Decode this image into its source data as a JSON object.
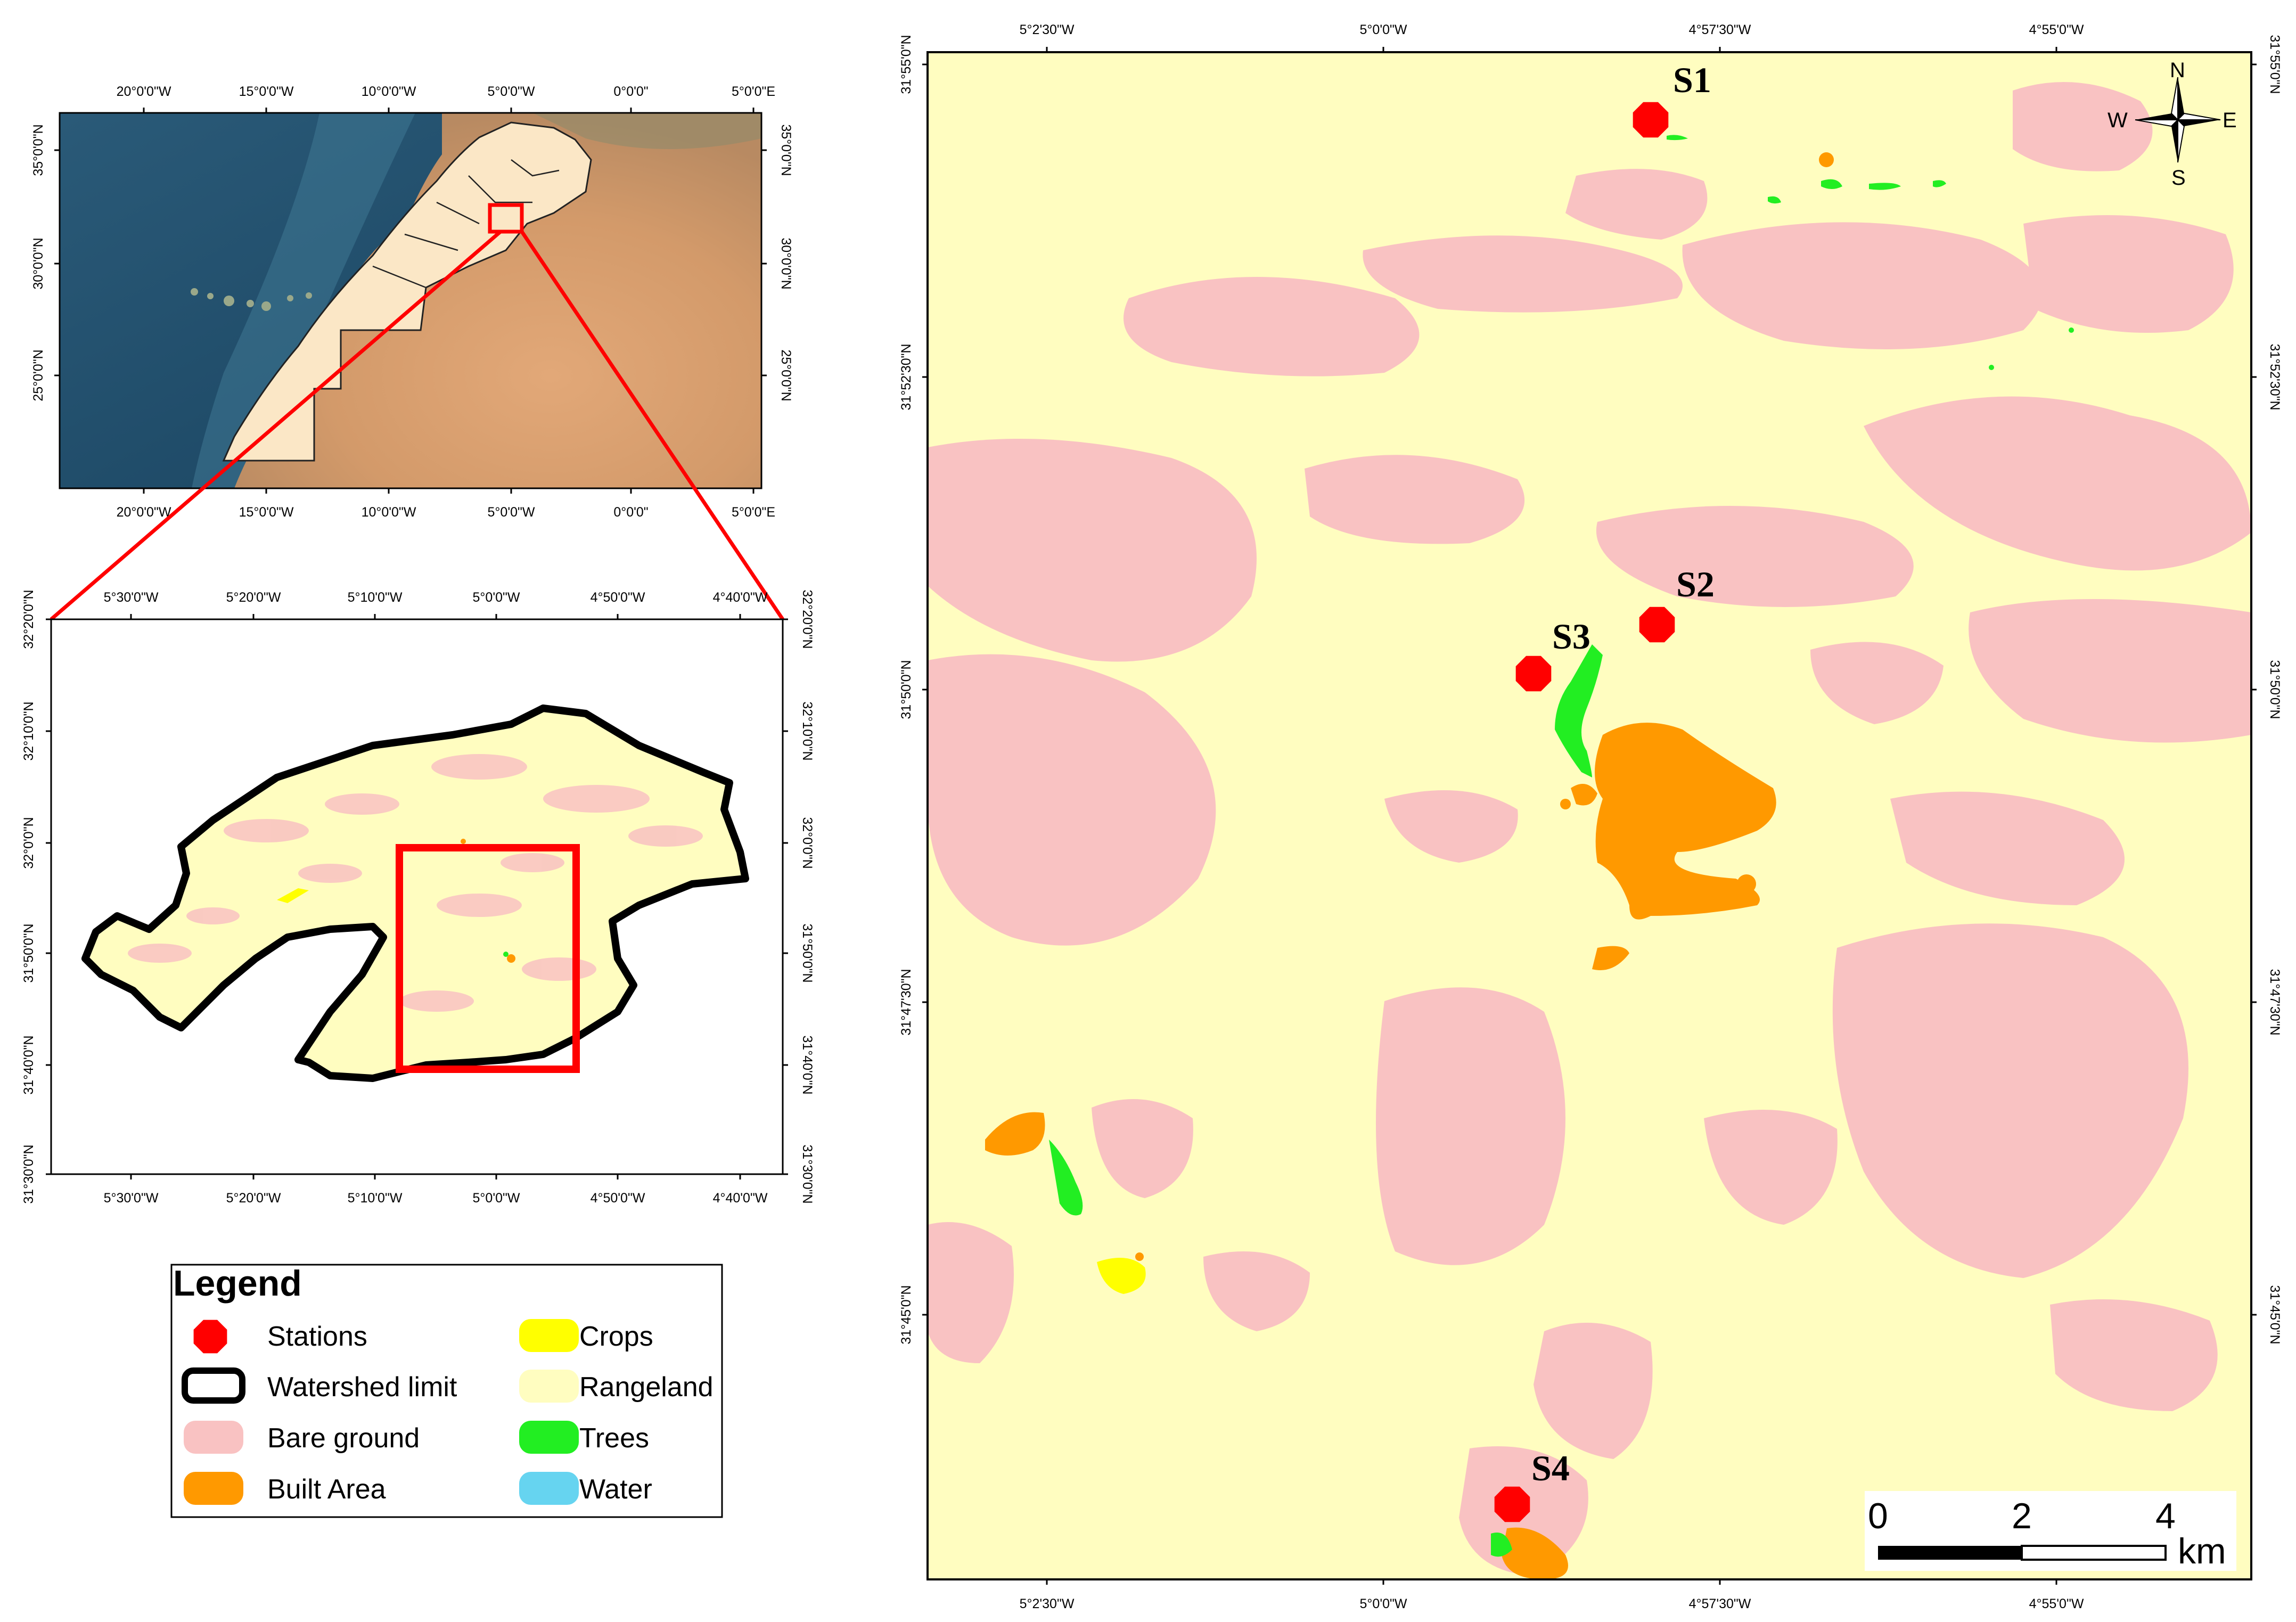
{
  "overview_map": {
    "top_ticks": [
      "20°0'0\"W",
      "15°0'0\"W",
      "10°0'0\"W",
      "5°0'0\"W",
      "0°0'0\"",
      "5°0'0\"E"
    ],
    "bottom_ticks": [
      "20°0'0\"W",
      "15°0'0\"W",
      "10°0'0\"W",
      "5°0'0\"W",
      "0°0'0\"",
      "5°0'0\"E"
    ],
    "left_ticks": [
      "35°0'0\"N",
      "30°0'0\"N",
      "25°0'0\"N"
    ],
    "right_ticks": [
      "35°0'0\"N",
      "30°0'0\"N",
      "25°0'0\"N"
    ]
  },
  "watershed_map": {
    "top_ticks": [
      "5°30'0\"W",
      "5°20'0\"W",
      "5°10'0\"W",
      "5°0'0\"W",
      "4°50'0\"W",
      "4°40'0\"W"
    ],
    "bottom_ticks": [
      "5°30'0\"W",
      "5°20'0\"W",
      "5°10'0\"W",
      "5°0'0\"W",
      "4°50'0\"W",
      "4°40'0\"W"
    ],
    "left_ticks": [
      "32°20'0\"N",
      "32°10'0\"N",
      "32°0'0\"N",
      "31°50'0\"N",
      "31°40'0\"N",
      "31°30'0\"N"
    ],
    "right_ticks": [
      "32°20'0\"N",
      "32°10'0\"N",
      "32°0'0\"N",
      "31°50'0\"N",
      "31°40'0\"N",
      "31°30'0\"N"
    ]
  },
  "main_map": {
    "top_ticks": [
      "5°2'30\"W",
      "5°0'0\"W",
      "4°57'30\"W",
      "4°55'0\"W"
    ],
    "bottom_ticks": [
      "5°2'30\"W",
      "5°0'0\"W",
      "4°57'30\"W",
      "4°55'0\"W"
    ],
    "left_ticks": [
      "31°55'0\"N",
      "31°52'30\"N",
      "31°50'0\"N",
      "31°47'30\"N",
      "31°45'0\"N"
    ],
    "right_ticks": [
      "31°55'0\"N",
      "31°52'30\"N",
      "31°50'0\"N",
      "31°47'30\"N",
      "31°45'0\"N"
    ],
    "stations": [
      "S1",
      "S2",
      "S3",
      "S4"
    ],
    "compass": {
      "n": "N",
      "s": "S",
      "e": "E",
      "w": "W"
    },
    "scale_bar": {
      "labels": [
        "0",
        "2",
        "4"
      ],
      "unit": "km"
    }
  },
  "legend": {
    "title": "Legend",
    "items": [
      {
        "label": "Stations",
        "color": "#ff0000",
        "symbol": "octagon"
      },
      {
        "label": "Watershed limit",
        "color": "#000000",
        "symbol": "outline"
      },
      {
        "label": "Bare ground",
        "color": "#f9c2c2",
        "symbol": "patch"
      },
      {
        "label": "Built Area",
        "color": "#ff9900",
        "symbol": "patch"
      },
      {
        "label": "Crops",
        "color": "#ffff00",
        "symbol": "patch"
      },
      {
        "label": "Rangeland",
        "color": "#fffdc0",
        "symbol": "patch"
      },
      {
        "label": "Trees",
        "color": "#22ee22",
        "symbol": "patch"
      },
      {
        "label": "Water",
        "color": "#66d4f0",
        "symbol": "patch"
      }
    ]
  },
  "colors": {
    "rangeland": "#fffdc0",
    "bare_ground": "#f9c2c2",
    "built_area": "#ff9900",
    "crops": "#ffff00",
    "trees": "#22ee22",
    "water": "#66d4f0",
    "station": "#ff0000",
    "highlight": "#ff0000"
  }
}
